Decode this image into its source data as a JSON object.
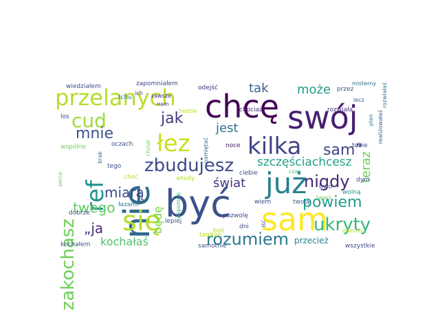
{
  "words": [
    {
      "text": "być",
      "color": "#3b528b",
      "vertical": false
    },
    {
      "text": "chcę",
      "color": "#440154",
      "vertical": false
    },
    {
      "text": "swój",
      "color": "#481f70",
      "vertical": false
    },
    {
      "text": "sam",
      "color": "#fde725",
      "vertical": false
    },
    {
      "text": "nie",
      "color": "#31688e",
      "vertical": true
    },
    {
      "text": "już",
      "color": "#26828e",
      "vertical": false
    },
    {
      "text": "się",
      "color": "#b5de2b",
      "vertical": false
    },
    {
      "text": "kilka",
      "color": "#414487",
      "vertical": false
    },
    {
      "text": "łez",
      "color": "#c8e020",
      "vertical": false
    },
    {
      "text": "przelanych",
      "color": "#b5de2b",
      "vertical": false
    },
    {
      "text": "ref",
      "color": "#21918c",
      "vertical": true
    },
    {
      "text": "zbudujesz",
      "color": "#3e4989",
      "vertical": false
    },
    {
      "text": "cud",
      "color": "#9fda3a",
      "vertical": false
    },
    {
      "text": "nigdy",
      "color": "#482475",
      "vertical": false
    },
    {
      "text": "rozumiem",
      "color": "#2a788e",
      "vertical": false
    },
    {
      "text": "ukryty",
      "color": "#35b779",
      "vertical": false
    },
    {
      "text": "zakochasz",
      "color": "#6ece58",
      "vertical": true
    },
    {
      "text": "powiem",
      "color": "#1f9e89",
      "vertical": false
    },
    {
      "text": "mnie",
      "color": "#3b528b",
      "vertical": false
    },
    {
      "text": "sam”",
      "color": "#414487",
      "vertical": false
    },
    {
      "text": "szczęściachcesz",
      "color": "#1f9e89",
      "vertical": false
    },
    {
      "text": "teraz",
      "color": "#6ece58",
      "vertical": true
    },
    {
      "text": "jak",
      "color": "#443983",
      "vertical": false
    },
    {
      "text": "jest",
      "color": "#2c728e",
      "vertical": false
    },
    {
      "text": "może",
      "color": "#1f9e89",
      "vertical": false
    },
    {
      "text": "tak",
      "color": "#355f8d",
      "vertical": false
    },
    {
      "text": "świat",
      "color": "#46327e",
      "vertical": false
    },
    {
      "text": "miarą",
      "color": "#3e4989",
      "vertical": false
    },
    {
      "text": "twego",
      "color": "#5ec962",
      "vertical": false
    },
    {
      "text": "„ja",
      "color": "#472d7b",
      "vertical": false
    },
    {
      "text": "kochałaś",
      "color": "#4ac16d",
      "vertical": false
    },
    {
      "text": "będę",
      "color": "#7ad151",
      "vertical": true
    },
    {
      "text": "przecież",
      "color": "#26828e",
      "vertical": false
    },
    {
      "text": "wiedziałem",
      "color": "#3b528b",
      "vertical": false
    },
    {
      "text": "zapomniałem",
      "color": "#3e4989",
      "vertical": false
    },
    {
      "text": "odejść",
      "color": "#472d7b",
      "vertical": false
    },
    {
      "text": "przez",
      "color": "#3b528b",
      "vertical": false
    },
    {
      "text": "misterny",
      "color": "#31688e",
      "vertical": false
    },
    {
      "text": "rozwiałaś",
      "color": "#2c728e",
      "vertical": true
    },
    {
      "text": "tchu",
      "color": "#2c728e",
      "vertical": false
    },
    {
      "text": "ich",
      "color": "#46327e",
      "vertical": false
    },
    {
      "text": "zawsze",
      "color": "#482475",
      "vertical": false
    },
    {
      "text": "los",
      "color": "#3e4989",
      "vertical": false
    },
    {
      "text": "nam",
      "color": "#443983",
      "vertical": false
    },
    {
      "text": "będzie",
      "color": "#b5de2b",
      "vertical": false
    },
    {
      "text": "lecz",
      "color": "#3b528b",
      "vertical": false
    },
    {
      "text": "realizowałaś",
      "color": "#3b528b",
      "vertical": true
    },
    {
      "text": "chociaż",
      "color": "#482878",
      "vertical": false
    },
    {
      "text": "rozwiała",
      "color": "#472d7b",
      "vertical": false
    },
    {
      "text": "plan",
      "color": "#2a788e",
      "vertical": true
    },
    {
      "text": "wspólne",
      "color": "#6ece58",
      "vertical": false
    },
    {
      "text": "oczach",
      "color": "#3e4989",
      "vertical": false
    },
    {
      "text": "chciał",
      "color": "#6ece58",
      "vertical": true
    },
    {
      "text": "pamiętać",
      "color": "#31688e",
      "vertical": true
    },
    {
      "text": "noce",
      "color": "#471365",
      "vertical": false
    },
    {
      "text": "tobie",
      "color": "#3e4989",
      "vertical": false
    },
    {
      "text": "brak",
      "color": "#2c728e",
      "vertical": true
    },
    {
      "text": "tego",
      "color": "#3e4989",
      "vertical": false
    },
    {
      "text": "choć",
      "color": "#b5de2b",
      "vertical": false
    },
    {
      "text": "wtedy",
      "color": "#b5de2b",
      "vertical": false
    },
    {
      "text": "ciebie",
      "color": "#3e4989",
      "vertical": false
    },
    {
      "text": "czas",
      "color": "#4ac16d",
      "vertical": false
    },
    {
      "text": "dym",
      "color": "#3e4989",
      "vertical": false
    },
    {
      "text": "było",
      "color": "#3b528b",
      "vertical": false
    },
    {
      "text": "wolną",
      "color": "#21918c",
      "vertical": false
    },
    {
      "text": "twarz",
      "color": "#6ece58",
      "vertical": false
    },
    {
      "text": "serce",
      "color": "#6ece58",
      "vertical": true
    },
    {
      "text": "wspomnę",
      "color": "#35b779",
      "vertical": true
    },
    {
      "text": "łazami",
      "color": "#2a788e",
      "vertical": false
    },
    {
      "text": "wiem",
      "color": "#3e4989",
      "vertical": false
    },
    {
      "text": "twoją",
      "color": "#355f8d",
      "vertical": false
    },
    {
      "text": "iść",
      "color": "#3b528b",
      "vertical": true
    },
    {
      "text": "odeszły",
      "color": "#b5de2b",
      "vertical": false
    },
    {
      "text": "dobrze",
      "color": "#3b528b",
      "vertical": false
    },
    {
      "text": "pozwolę",
      "color": "#3e4989",
      "vertical": false
    },
    {
      "text": "lepiej",
      "color": "#3b528b",
      "vertical": false
    },
    {
      "text": "dni",
      "color": "#3e4989",
      "vertical": false
    },
    {
      "text": "boli",
      "color": "#b5de2b",
      "vertical": false
    },
    {
      "text": "tamten",
      "color": "#b5de2b",
      "vertical": false
    },
    {
      "text": "samotnie",
      "color": "#3b528b",
      "vertical": false
    },
    {
      "text": "wszystkie",
      "color": "#3e4989",
      "vertical": false
    },
    {
      "text": "kochałem",
      "color": "#3b528b",
      "vertical": false
    }
  ]
}
